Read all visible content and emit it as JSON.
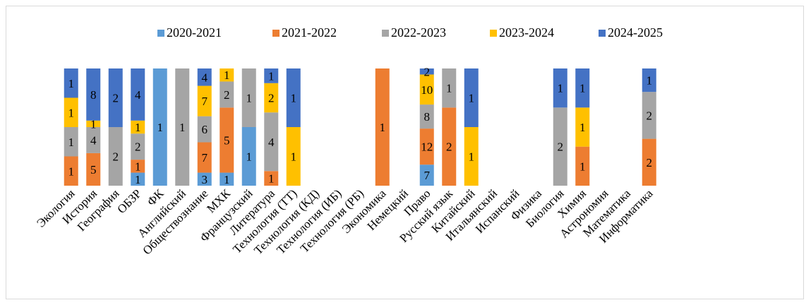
{
  "chart_data": {
    "type": "bar",
    "stacked": true,
    "normalized": "percent",
    "legend_position": "top",
    "grid": false,
    "series": [
      {
        "name": "2020-2021",
        "color": "#5b9bd5",
        "values": [
          0,
          0,
          0,
          1,
          1,
          0,
          3,
          1,
          1,
          0,
          0,
          0,
          0,
          0,
          0,
          0,
          7,
          0,
          0,
          0,
          0,
          0,
          0,
          0,
          0,
          0,
          0
        ]
      },
      {
        "name": "2021-2022",
        "color": "#ed7d31",
        "values": [
          1,
          5,
          0,
          1,
          0,
          0,
          7,
          5,
          0,
          1,
          0,
          0,
          0,
          0,
          1,
          0,
          12,
          2,
          0,
          0,
          0,
          0,
          0,
          1,
          0,
          0,
          2
        ]
      },
      {
        "name": "2022-2023",
        "color": "#a5a5a5",
        "values": [
          1,
          4,
          2,
          2,
          0,
          1,
          6,
          2,
          1,
          4,
          0,
          0,
          0,
          0,
          0,
          0,
          8,
          1,
          0,
          0,
          0,
          0,
          2,
          0,
          0,
          0,
          2
        ]
      },
      {
        "name": "2023-2024",
        "color": "#ffc000",
        "values": [
          1,
          1,
          0,
          1,
          0,
          0,
          7,
          1,
          0,
          2,
          1,
          0,
          0,
          0,
          0,
          0,
          10,
          0,
          1,
          0,
          0,
          0,
          0,
          1,
          0,
          0,
          0
        ]
      },
      {
        "name": "2024-2025",
        "color": "#4472c4",
        "values": [
          1,
          8,
          2,
          4,
          0,
          0,
          4,
          0,
          0,
          1,
          1,
          0,
          0,
          0,
          0,
          0,
          2,
          0,
          1,
          0,
          0,
          0,
          1,
          1,
          0,
          0,
          1
        ]
      }
    ],
    "categories": [
      "Экология",
      "История",
      "География",
      "ОБЗР",
      "ФК",
      "Английский",
      "Обществознание",
      "МХК",
      "Французский",
      "Литература",
      "Технология (ТТ)",
      "Технология (КД)",
      "Технология (ИБ)",
      "Технология (РБ)",
      "Экономика",
      "Немецкий",
      "Право",
      "Русский язык",
      "Китайский",
      "Итальянский",
      "Испанский",
      "Физика",
      "Биология",
      "Химия",
      "Астрономия",
      "Математика",
      "Информатика"
    ]
  }
}
